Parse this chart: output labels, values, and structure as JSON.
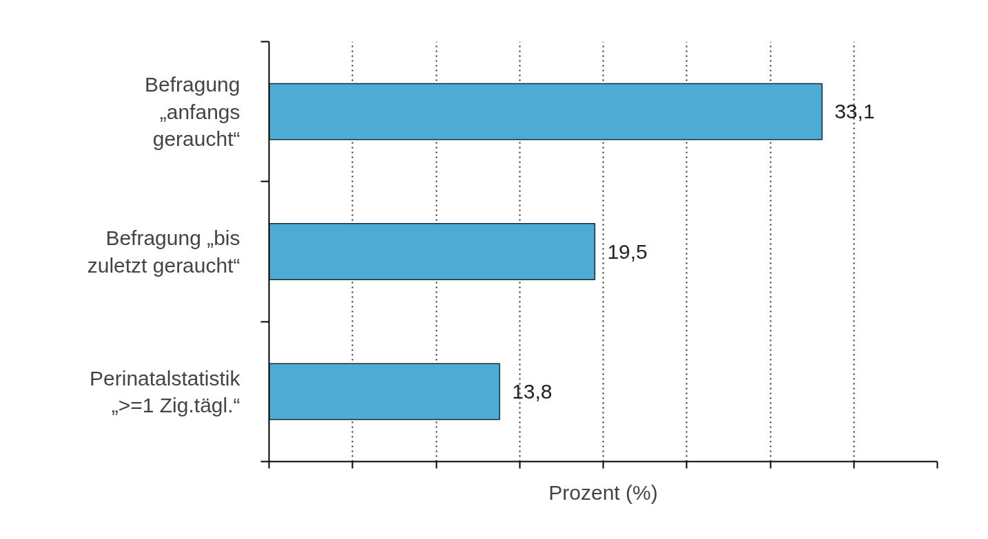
{
  "chart_data": {
    "type": "bar",
    "orientation": "horizontal",
    "xlabel": "Prozent (%)",
    "categories": [
      "Befragung\n„anfangs\ngeraucht“",
      "Befragung „bis\nzuletzt geraucht“",
      "Perinatalstatistik\n„>=1 Zig.tägl.“"
    ],
    "values": [
      33.1,
      19.5,
      13.8
    ],
    "value_labels": [
      "33,1",
      "19,5",
      "13,8"
    ],
    "color": "#4eabd3",
    "xlim": [
      0,
      40
    ],
    "xticks": [
      {
        "value": 0,
        "label": null
      },
      {
        "value": 5,
        "label": null
      },
      {
        "value": 10,
        "label": null
      },
      {
        "value": 15,
        "label": null
      },
      {
        "value": 20,
        "label": null
      },
      {
        "value": 25,
        "label": null
      },
      {
        "value": 30,
        "label": null
      },
      {
        "value": 35,
        "label": null
      },
      {
        "value": 40,
        "label": null
      }
    ],
    "tick_labels": "y",
    "grid": "x"
  }
}
